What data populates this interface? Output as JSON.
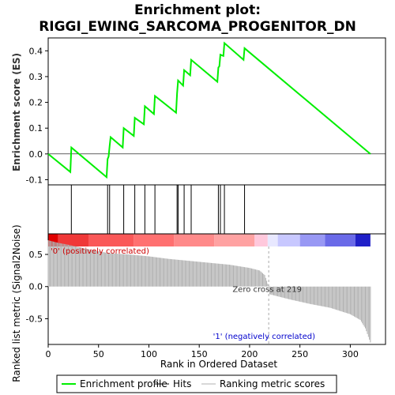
{
  "chart_data": {
    "type": "line",
    "title_line1": "Enrichment plot:",
    "title_line2": "RIGGI_EWING_SARCOMA_PROGENITOR_DN",
    "es_ylabel": "Enrichment score (ES)",
    "rank_ylabel": "Ranked list metric (Signal2Noise)",
    "xlabel": "Rank in Ordered Dataset",
    "xlim": [
      0,
      335
    ],
    "x_ticks": [
      0,
      50,
      100,
      150,
      200,
      250,
      300
    ],
    "x_tick_labels": [
      "0",
      "50",
      "100",
      "150",
      "200",
      "250",
      "300"
    ],
    "es_ylim": [
      -0.12,
      0.45
    ],
    "es_y_ticks": [
      -0.1,
      0.0,
      0.1,
      0.2,
      0.3,
      0.4
    ],
    "es_y_tick_labels": [
      "-0.1",
      "0.0",
      "0.1",
      "0.2",
      "0.3",
      "0.4"
    ],
    "rank_ylim": [
      -0.9,
      0.82
    ],
    "rank_y_ticks": [
      -0.5,
      0.0,
      0.5
    ],
    "rank_y_tick_labels": [
      "-0.5",
      "0.0",
      "0.5"
    ],
    "total_ranks": 320,
    "hits": [
      23,
      59,
      61,
      75,
      86,
      96,
      106,
      128,
      129,
      135,
      142,
      169,
      171,
      175,
      195
    ],
    "es_curve": {
      "x": [
        0,
        22,
        23,
        58,
        59,
        60,
        61,
        62,
        74,
        75,
        85,
        86,
        95,
        96,
        105,
        106,
        127,
        128,
        129,
        134,
        135,
        141,
        142,
        168,
        169,
        170,
        171,
        174,
        175,
        194,
        195,
        320
      ],
      "y": [
        0.0,
        -0.07,
        0.025,
        -0.09,
        -0.02,
        -0.01,
        0.03,
        0.065,
        0.025,
        0.1,
        0.07,
        0.14,
        0.115,
        0.185,
        0.155,
        0.225,
        0.16,
        0.235,
        0.285,
        0.265,
        0.325,
        0.305,
        0.365,
        0.28,
        0.335,
        0.34,
        0.385,
        0.38,
        0.43,
        0.365,
        0.41,
        0.0
      ]
    },
    "metric_profile": {
      "x": [
        0,
        10,
        20,
        40,
        60,
        80,
        100,
        120,
        140,
        160,
        180,
        200,
        210,
        215,
        219,
        220,
        240,
        260,
        280,
        300,
        310,
        315,
        320
      ],
      "y": [
        0.72,
        0.68,
        0.65,
        0.58,
        0.52,
        0.5,
        0.47,
        0.43,
        0.4,
        0.37,
        0.34,
        0.29,
        0.25,
        0.18,
        0.0,
        -0.12,
        -0.2,
        -0.27,
        -0.33,
        -0.43,
        -0.52,
        -0.65,
        -0.87
      ]
    },
    "zero_cross_rank": 219,
    "zero_cross_label": "Zero cross at 219",
    "pos_label": "'0' (positively correlated)",
    "neg_label": "'1' (negatively correlated)",
    "colorbar": [
      {
        "from": 0,
        "to": 10,
        "color": "#e00000"
      },
      {
        "from": 10,
        "to": 40,
        "color": "#f03838"
      },
      {
        "from": 40,
        "to": 85,
        "color": "#fa5858"
      },
      {
        "from": 85,
        "to": 125,
        "color": "#ff7070"
      },
      {
        "from": 125,
        "to": 165,
        "color": "#ff8a8a"
      },
      {
        "from": 165,
        "to": 205,
        "color": "#ffa2a2"
      },
      {
        "from": 205,
        "to": 218,
        "color": "#ffc8dc"
      },
      {
        "from": 218,
        "to": 228,
        "color": "#e8e8ff"
      },
      {
        "from": 228,
        "to": 250,
        "color": "#c8c8ff"
      },
      {
        "from": 250,
        "to": 275,
        "color": "#9898f4"
      },
      {
        "from": 275,
        "to": 305,
        "color": "#6a6ae8"
      },
      {
        "from": 305,
        "to": 320,
        "color": "#2020c8"
      }
    ],
    "colors": {
      "es_line": "#00ee00",
      "hit": "#000000",
      "metric_fill": "#b0b0b0",
      "pos_label": "#cc0000",
      "neg_label": "#0000cc",
      "zero_line": "#aaaaaa"
    },
    "legend": [
      {
        "label": "Enrichment profile",
        "kind": "es"
      },
      {
        "label": "Hits",
        "kind": "hit"
      },
      {
        "label": "Ranking metric scores",
        "kind": "metric"
      }
    ]
  }
}
